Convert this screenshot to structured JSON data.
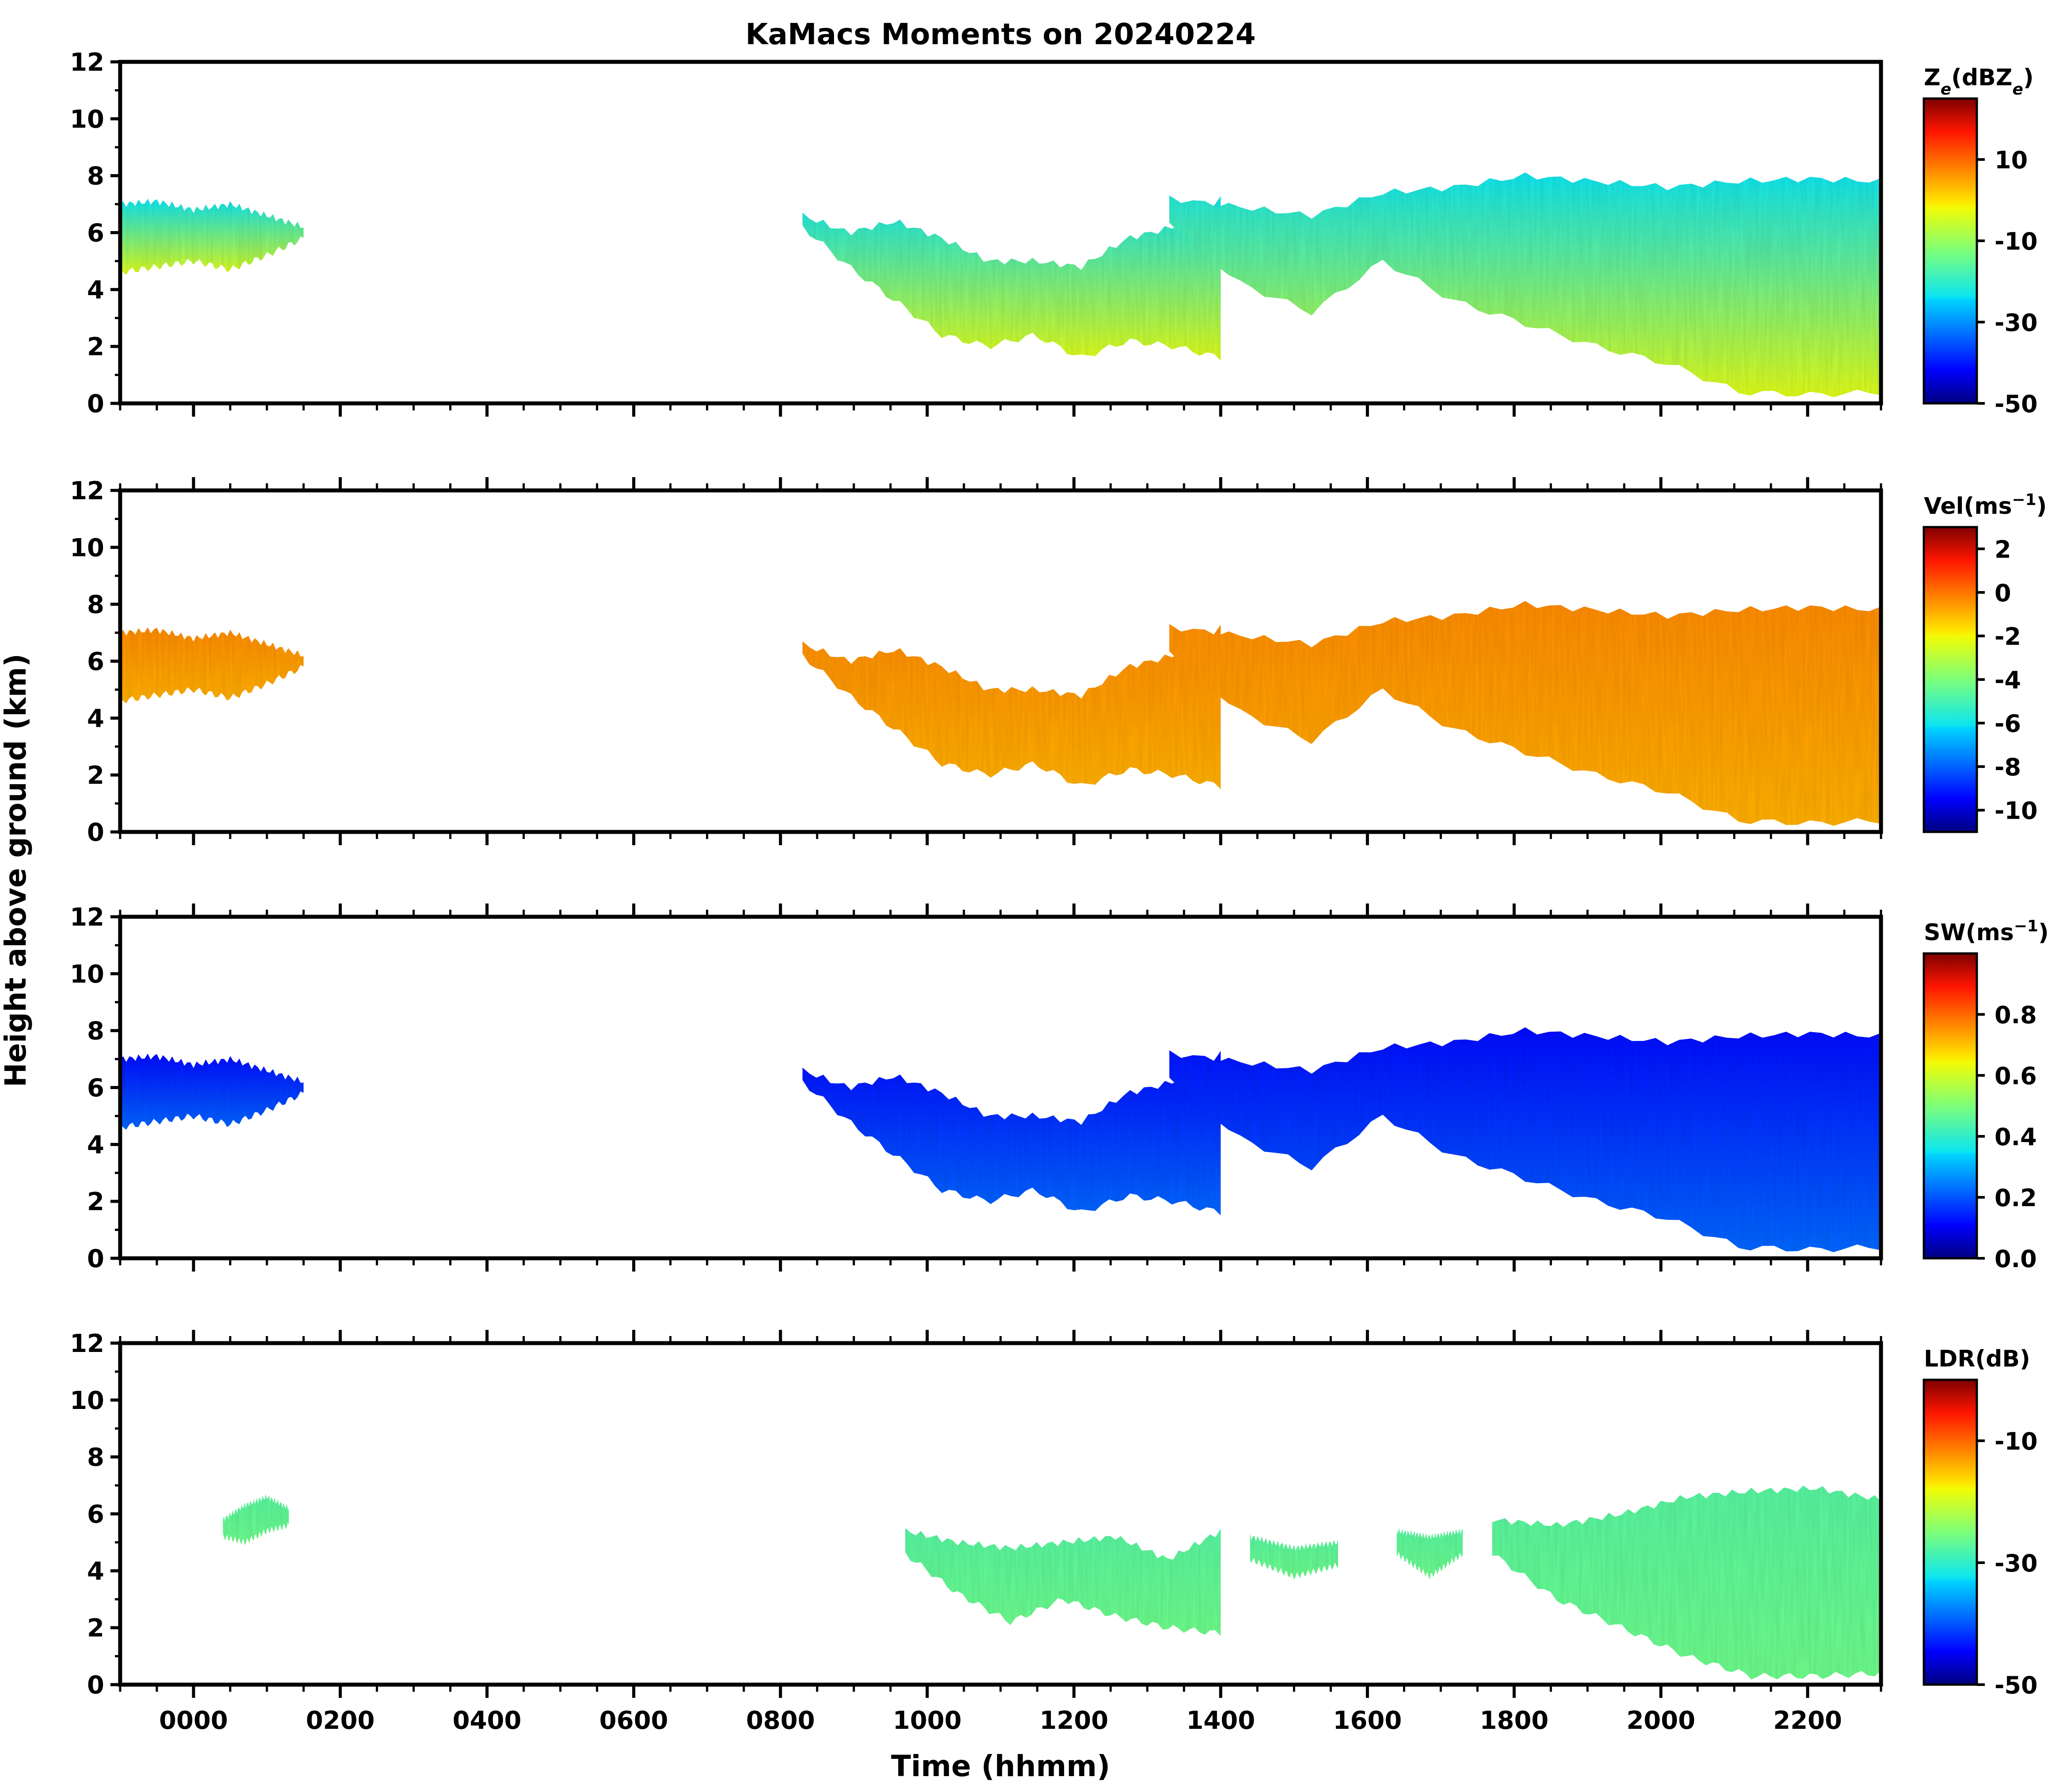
{
  "figure": {
    "title": "KaMacs Moments on 20240224",
    "ylabel": "Height above ground (km)",
    "xlabel": "Time (hhmm)"
  },
  "chart_data": [
    {
      "type": "heatmap",
      "name": "Ze",
      "title": "KaMacs Moments on 20240224",
      "xlabel": "",
      "ylabel": "Height above ground (km)",
      "xlim": [
        -100,
        2300
      ],
      "ylim": [
        0,
        12
      ],
      "xticks": [
        0,
        200,
        400,
        600,
        800,
        1000,
        1200,
        1400,
        1600,
        1800,
        2000,
        2200
      ],
      "yticks": [
        0,
        2,
        4,
        6,
        8,
        10,
        12
      ],
      "ytick_labels": [
        "0",
        "2",
        "4",
        "6",
        "8",
        "10",
        "12"
      ],
      "colorbar": {
        "label_main": "Z",
        "label_sub": "e",
        "label_rest": "(dBZ",
        "label_sub2": "e",
        "label_end": ")",
        "range": [
          -50,
          25
        ],
        "ticks": [
          -50,
          -30,
          -10,
          10
        ],
        "tick_labels": [
          "-50",
          "-30",
          "-10",
          "10"
        ]
      },
      "value_at_top": 0.35,
      "value_at_bottom": 0.62,
      "echo": {
        "regions": [
          {
            "x0": -100,
            "x1": 150,
            "top": [
              7.0,
              7.1,
              6.8,
              7.0,
              6.6,
              6.2
            ],
            "bottom": [
              4.6,
              4.8,
              5.0,
              4.7,
              5.2,
              5.8
            ]
          },
          {
            "x0": 830,
            "x1": 1400,
            "top": [
              6.6,
              6.0,
              6.4,
              5.8,
              5.0,
              5.0,
              4.8,
              5.8,
              6.2,
              7.2
            ],
            "bottom": [
              6.2,
              4.8,
              3.6,
              2.4,
              2.0,
              2.4,
              1.6,
              2.2,
              2.0,
              1.6
            ]
          },
          {
            "x0": 1330,
            "x1": 2300,
            "top": [
              7.2,
              6.9,
              6.6,
              7.4,
              7.6,
              8.0,
              7.8,
              7.6,
              7.8,
              7.9,
              7.8
            ],
            "bottom": [
              6.4,
              4.2,
              3.2,
              5.0,
              3.6,
              2.8,
              2.0,
              1.4,
              0.4,
              0.3,
              0.4
            ]
          }
        ]
      }
    },
    {
      "type": "heatmap",
      "name": "Vel",
      "xlim": [
        -100,
        2300
      ],
      "ylim": [
        0,
        12
      ],
      "xticks": [
        0,
        200,
        400,
        600,
        800,
        1000,
        1200,
        1400,
        1600,
        1800,
        2000,
        2200
      ],
      "yticks": [
        0,
        2,
        4,
        6,
        8,
        10,
        12
      ],
      "ytick_labels": [
        "0",
        "2",
        "4",
        "6",
        "8",
        "10",
        "12"
      ],
      "colorbar": {
        "label_main": "Vel(ms",
        "label_sup": "−1",
        "label_end": ")",
        "range": [
          -11,
          3
        ],
        "ticks": [
          -10,
          -8,
          -6,
          -4,
          -2,
          0,
          2
        ],
        "tick_labels": [
          "-10",
          "-8",
          "-6",
          "-4",
          "-2",
          "0",
          "2"
        ]
      },
      "value_at_top": 0.76,
      "value_at_bottom": 0.72,
      "echo": {
        "regions": [
          {
            "x0": -100,
            "x1": 150,
            "top": [
              7.0,
              7.1,
              6.8,
              7.0,
              6.6,
              6.2
            ],
            "bottom": [
              4.6,
              4.8,
              5.0,
              4.7,
              5.2,
              5.8
            ]
          },
          {
            "x0": 830,
            "x1": 1400,
            "top": [
              6.6,
              6.0,
              6.4,
              5.8,
              5.0,
              5.0,
              4.8,
              5.8,
              6.2,
              7.2
            ],
            "bottom": [
              6.2,
              4.8,
              3.6,
              2.4,
              2.0,
              2.4,
              1.6,
              2.2,
              2.0,
              1.6
            ]
          },
          {
            "x0": 1330,
            "x1": 2300,
            "top": [
              7.2,
              6.9,
              6.6,
              7.4,
              7.6,
              8.0,
              7.8,
              7.6,
              7.8,
              7.9,
              7.8
            ],
            "bottom": [
              6.4,
              4.2,
              3.2,
              5.0,
              3.6,
              2.8,
              2.0,
              1.4,
              0.4,
              0.3,
              0.4
            ]
          }
        ]
      }
    },
    {
      "type": "heatmap",
      "name": "SW",
      "xlim": [
        -100,
        2300
      ],
      "ylim": [
        0,
        12
      ],
      "xticks": [
        0,
        200,
        400,
        600,
        800,
        1000,
        1200,
        1400,
        1600,
        1800,
        2000,
        2200
      ],
      "yticks": [
        0,
        2,
        4,
        6,
        8,
        10,
        12
      ],
      "ytick_labels": [
        "0",
        "2",
        "4",
        "6",
        "8",
        "10",
        "12"
      ],
      "colorbar": {
        "label_main": "SW(ms",
        "label_sup": "−1",
        "label_end": ")",
        "range": [
          0,
          1
        ],
        "ticks": [
          0.0,
          0.2,
          0.4,
          0.6,
          0.8
        ],
        "tick_labels": [
          "0.0",
          "0.2",
          "0.4",
          "0.6",
          "0.8"
        ]
      },
      "value_at_top": 0.12,
      "value_at_bottom": 0.22,
      "echo": {
        "regions": [
          {
            "x0": -100,
            "x1": 150,
            "top": [
              7.0,
              7.1,
              6.8,
              7.0,
              6.6,
              6.2
            ],
            "bottom": [
              4.6,
              4.8,
              5.0,
              4.7,
              5.2,
              5.8
            ]
          },
          {
            "x0": 830,
            "x1": 1400,
            "top": [
              6.6,
              6.0,
              6.4,
              5.8,
              5.0,
              5.0,
              4.8,
              5.8,
              6.2,
              7.2
            ],
            "bottom": [
              6.2,
              4.8,
              3.6,
              2.4,
              2.0,
              2.4,
              1.6,
              2.2,
              2.0,
              1.6
            ]
          },
          {
            "x0": 1330,
            "x1": 2300,
            "top": [
              7.2,
              6.9,
              6.6,
              7.4,
              7.6,
              8.0,
              7.8,
              7.6,
              7.8,
              7.9,
              7.8
            ],
            "bottom": [
              6.4,
              4.2,
              3.2,
              5.0,
              3.6,
              2.8,
              2.0,
              1.4,
              0.4,
              0.3,
              0.4
            ]
          }
        ]
      }
    },
    {
      "type": "heatmap",
      "name": "LDR",
      "xlabel": "Time (hhmm)",
      "xlim": [
        -100,
        2300
      ],
      "ylim": [
        0,
        12
      ],
      "xticks": [
        0,
        200,
        400,
        600,
        800,
        1000,
        1200,
        1400,
        1600,
        1800,
        2000,
        2200
      ],
      "xtick_labels": [
        "0000",
        "0200",
        "0400",
        "0600",
        "0800",
        "1000",
        "1200",
        "1400",
        "1600",
        "1800",
        "2000",
        "2200"
      ],
      "yticks": [
        0,
        2,
        4,
        6,
        8,
        10,
        12
      ],
      "ytick_labels": [
        "0",
        "2",
        "4",
        "6",
        "8",
        "10",
        "12"
      ],
      "colorbar": {
        "label_main": "LDR(dB)",
        "range": [
          -50,
          0
        ],
        "ticks": [
          -50,
          -30,
          -10
        ],
        "tick_labels": [
          "-50",
          "-30",
          "-10"
        ]
      },
      "value_at_top": 0.45,
      "value_at_bottom": 0.48,
      "echo": {
        "regions": [
          {
            "x0": 40,
            "x1": 130,
            "top": [
              5.8,
              6.3,
              6.6,
              6.2
            ],
            "bottom": [
              5.2,
              5.0,
              5.4,
              5.6
            ]
          },
          {
            "x0": 970,
            "x1": 1400,
            "top": [
              5.4,
              5.0,
              4.8,
              5.0,
              5.2,
              4.4,
              5.4
            ],
            "bottom": [
              4.6,
              3.2,
              2.2,
              3.0,
              2.4,
              2.0,
              1.8
            ]
          },
          {
            "x0": 1440,
            "x1": 1560,
            "top": [
              5.2,
              4.8,
              5.0
            ],
            "bottom": [
              4.4,
              3.8,
              4.2
            ]
          },
          {
            "x0": 1640,
            "x1": 1730,
            "top": [
              5.4,
              5.2,
              5.4
            ],
            "bottom": [
              4.6,
              3.8,
              4.6
            ]
          },
          {
            "x0": 1770,
            "x1": 2300,
            "top": [
              5.8,
              5.6,
              6.0,
              6.6,
              6.8,
              6.9,
              6.5
            ],
            "bottom": [
              4.6,
              3.0,
              2.0,
              1.0,
              0.3,
              0.3,
              0.4
            ]
          }
        ]
      }
    }
  ]
}
